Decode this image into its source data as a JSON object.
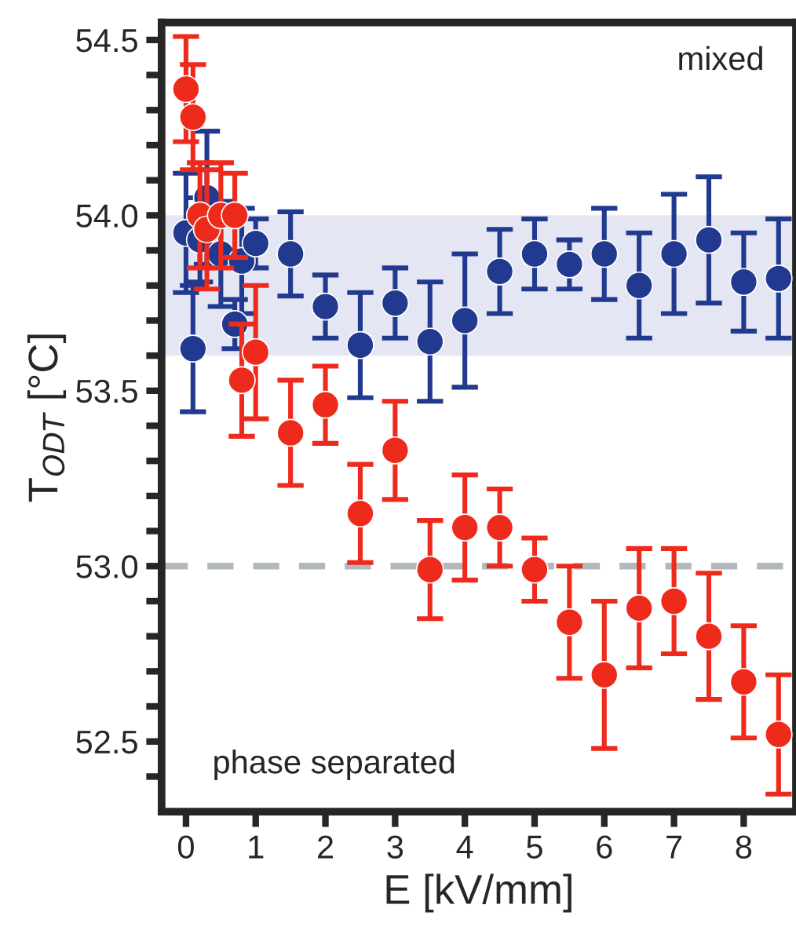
{
  "chart_data": {
    "type": "scatter",
    "xlabel": "E [kV/mm]",
    "ylabel": "T$_{ODT}$ [°C]",
    "xlim": [
      -0.35,
      8.75
    ],
    "ylim": [
      52.3,
      54.55
    ],
    "xticks": [
      0,
      1,
      2,
      3,
      4,
      5,
      6,
      7,
      8
    ],
    "yticks": [
      {
        "value": 52.4,
        "label": null
      },
      52.5,
      {
        "value": 52.6,
        "label": null
      },
      {
        "value": 52.7,
        "label": null
      },
      {
        "value": 52.8,
        "label": null
      },
      {
        "value": 52.9,
        "label": null
      },
      {
        "value": 53.0,
        "label": "53.0"
      },
      {
        "value": 53.1,
        "label": null
      },
      {
        "value": 53.2,
        "label": null
      },
      {
        "value": 53.3,
        "label": null
      },
      {
        "value": 53.4,
        "label": null
      },
      53.5,
      {
        "value": 53.6,
        "label": null
      },
      {
        "value": 53.7,
        "label": null
      },
      {
        "value": 53.8,
        "label": null
      },
      {
        "value": 53.9,
        "label": null
      },
      {
        "value": 54.0,
        "label": "54.0"
      },
      {
        "value": 54.1,
        "label": null
      },
      {
        "value": 54.2,
        "label": null
      },
      {
        "value": 54.3,
        "label": null
      },
      {
        "value": 54.4,
        "label": null
      },
      54.5
    ],
    "marker": "circle",
    "grid": false,
    "bands": [
      {
        "axis": "y",
        "from": 53.6,
        "to": 54.0,
        "color": "#e4e6f3"
      }
    ],
    "ref_lines": [
      {
        "axis": "y",
        "value": 53.0,
        "color": "#b3b8bc",
        "line_style": "dashed"
      }
    ],
    "annotations": [
      "mixed",
      "phase separated"
    ],
    "series": [
      {
        "color": "#213a8f",
        "x": [
          0,
          0.1,
          0.2,
          0.3,
          0.5,
          0.7,
          0.8,
          1.0,
          1.5,
          2,
          2.5,
          3,
          3.5,
          4,
          4.5,
          5,
          5.5,
          6,
          6.5,
          7,
          7.5,
          8,
          8.5
        ],
        "values": [
          53.95,
          53.62,
          53.93,
          54.05,
          53.89,
          53.69,
          53.87,
          53.92,
          53.89,
          53.74,
          53.63,
          53.75,
          53.64,
          53.7,
          53.84,
          53.89,
          53.86,
          53.89,
          53.8,
          53.89,
          53.93,
          53.81,
          53.82
        ],
        "errors": [
          0.17,
          0.18,
          0.12,
          0.19,
          0.15,
          0.07,
          0.15,
          0.07,
          0.12,
          0.09,
          0.15,
          0.1,
          0.17,
          0.19,
          0.12,
          0.1,
          0.07,
          0.13,
          0.15,
          0.17,
          0.18,
          0.14,
          0.17
        ]
      },
      {
        "color": "#ee2a1c",
        "x": [
          0,
          0.1,
          0.2,
          0.3,
          0.5,
          0.7,
          0.8,
          1.0,
          1.5,
          2,
          2.5,
          3,
          3.5,
          4,
          4.5,
          5,
          5.5,
          6,
          6.5,
          7,
          7.5,
          8,
          8.5
        ],
        "values": [
          54.36,
          54.28,
          54.0,
          53.96,
          54.0,
          54.0,
          53.53,
          53.61,
          53.38,
          53.46,
          53.15,
          53.33,
          52.99,
          53.11,
          53.11,
          52.99,
          52.84,
          52.69,
          52.88,
          52.9,
          52.8,
          52.67,
          52.52
        ],
        "errors": [
          0.15,
          0.15,
          0.15,
          0.17,
          0.15,
          0.12,
          0.16,
          0.19,
          0.15,
          0.11,
          0.14,
          0.14,
          0.14,
          0.15,
          0.11,
          0.09,
          0.16,
          0.21,
          0.17,
          0.15,
          0.18,
          0.16,
          0.17
        ]
      }
    ]
  }
}
